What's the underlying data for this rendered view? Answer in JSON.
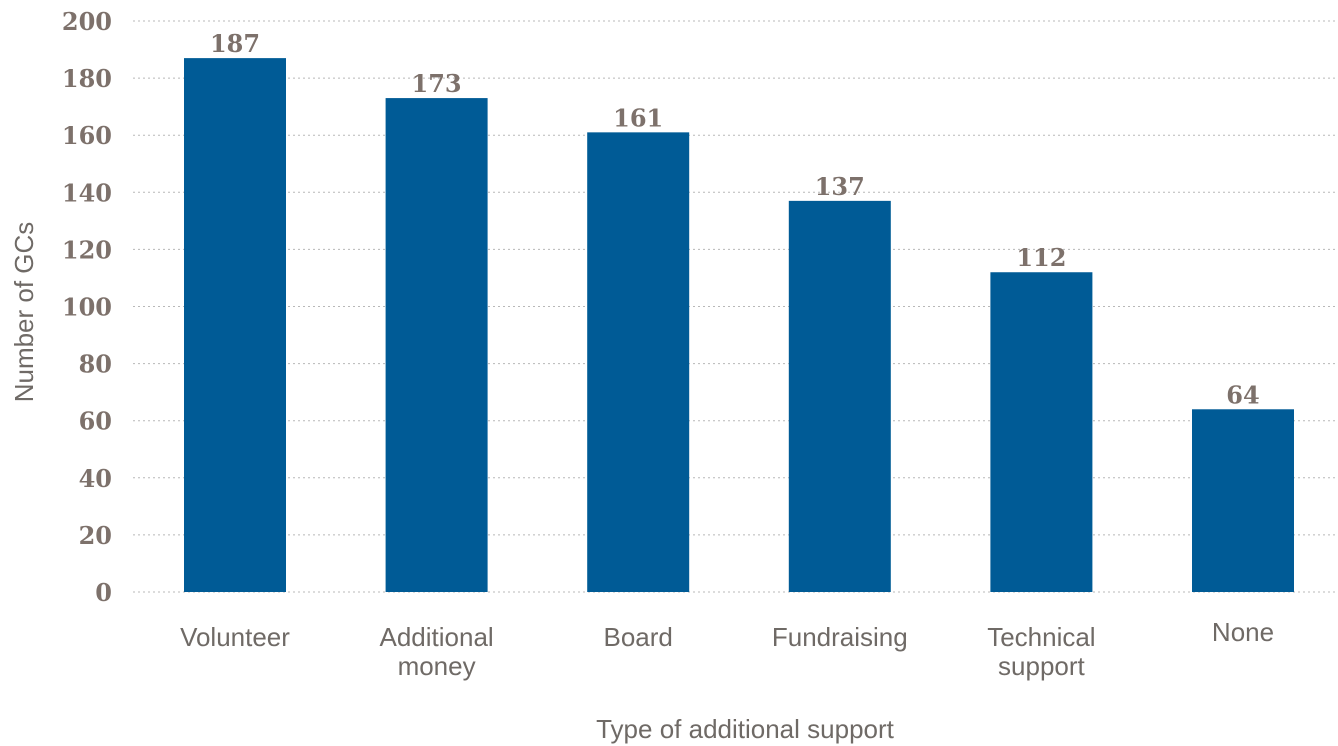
{
  "chart_data": {
    "type": "bar",
    "categories": [
      [
        "Volunteer"
      ],
      [
        "Additional",
        "money"
      ],
      [
        "Board"
      ],
      [
        "Fundraising"
      ],
      [
        "Technical",
        "support"
      ],
      [
        "None"
      ]
    ],
    "values": [
      187,
      173,
      161,
      137,
      112,
      64
    ],
    "data_labels": [
      "187",
      "173",
      "161",
      "137",
      "112",
      "64"
    ],
    "xlabel": "Type of additional support",
    "ylabel": "Number of GCs",
    "ylim": [
      0,
      200
    ],
    "yticks": [
      0,
      20,
      40,
      60,
      80,
      100,
      120,
      140,
      160,
      180,
      200
    ],
    "grid": true,
    "legend": "none",
    "bar_color": "#005b96"
  }
}
